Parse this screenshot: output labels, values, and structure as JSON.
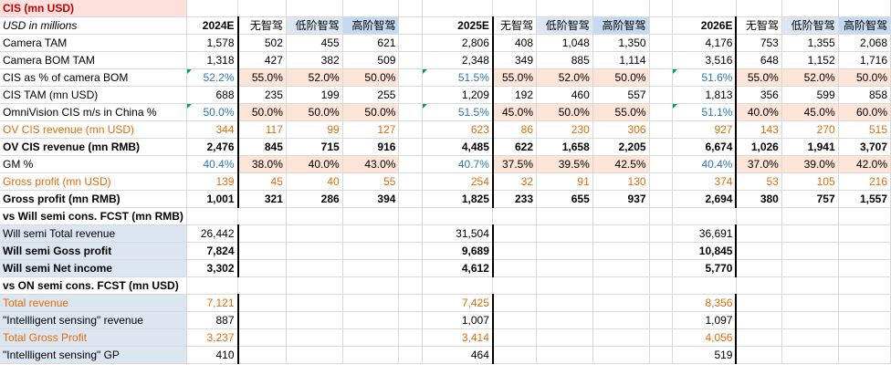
{
  "title": "CIS (mn USD)",
  "units_note": "USD in millions",
  "years": [
    "2024E",
    "2025E",
    "2026E"
  ],
  "sub_headers": [
    "无智驾",
    "低阶智驾",
    "高阶智驾"
  ],
  "rows": [
    {
      "label": "Camera TAM",
      "style": "plain",
      "vals": [
        "1,578",
        "502",
        "455",
        "621",
        "2,806",
        "408",
        "1,048",
        "1,350",
        "4,176",
        "753",
        "1,355",
        "2,068"
      ]
    },
    {
      "label": "Camera BOM TAM",
      "style": "plain",
      "vals": [
        "1,318",
        "427",
        "382",
        "509",
        "2,348",
        "349",
        "885",
        "1,114",
        "3,516",
        "648",
        "1,152",
        "1,716"
      ]
    },
    {
      "label": "CIS as % of camera BOM",
      "style": "pct",
      "vals": [
        "52.2%",
        "55.0%",
        "52.0%",
        "50.0%",
        "51.5%",
        "55.0%",
        "52.0%",
        "50.0%",
        "51.6%",
        "55.0%",
        "52.0%",
        "50.0%"
      ]
    },
    {
      "label": "CIS TAM (mn USD)",
      "style": "plain",
      "vals": [
        "688",
        "235",
        "199",
        "255",
        "1,209",
        "192",
        "460",
        "557",
        "1,813",
        "356",
        "599",
        "858"
      ]
    },
    {
      "label": "OmniVision CIS m/s in China %",
      "style": "pct",
      "vals": [
        "50.0%",
        "50.0%",
        "50.0%",
        "50.0%",
        "51.5%",
        "45.0%",
        "50.0%",
        "55.0%",
        "51.1%",
        "40.0%",
        "45.0%",
        "60.0%"
      ]
    },
    {
      "label": "OV CIS revenue (mn USD)",
      "style": "orange",
      "vals": [
        "344",
        "117",
        "99",
        "127",
        "623",
        "86",
        "230",
        "306",
        "927",
        "143",
        "270",
        "515"
      ]
    },
    {
      "label": "OV CIS revenue (mn RMB)",
      "style": "bold",
      "vals": [
        "2,476",
        "845",
        "715",
        "916",
        "4,485",
        "622",
        "1,658",
        "2,205",
        "6,674",
        "1,026",
        "1,941",
        "3,707"
      ]
    },
    {
      "label": "GM %",
      "style": "pct-ind",
      "vals": [
        "40.4%",
        "38.0%",
        "40.0%",
        "43.0%",
        "40.7%",
        "37.5%",
        "39.5%",
        "42.5%",
        "40.4%",
        "37.0%",
        "39.0%",
        "42.0%"
      ]
    },
    {
      "label": "Gross profit (mn USD)",
      "style": "orange-ind",
      "vals": [
        "139",
        "45",
        "40",
        "55",
        "254",
        "32",
        "91",
        "130",
        "374",
        "53",
        "105",
        "216"
      ]
    },
    {
      "label": "Gross profit (mn RMB)",
      "style": "bold-ind",
      "vals": [
        "1,001",
        "321",
        "286",
        "394",
        "1,825",
        "233",
        "655",
        "937",
        "2,694",
        "380",
        "757",
        "1,557"
      ]
    }
  ],
  "will_section": {
    "header": "vs Will semi cons. FCST (mn RMB)",
    "rows": [
      {
        "label": "Will semi Total revenue",
        "bold": false,
        "vals": [
          "26,442",
          "31,504",
          "36,691"
        ]
      },
      {
        "label": "Will semi Goss profit",
        "bold": true,
        "vals": [
          "7,824",
          "9,689",
          "10,845"
        ]
      },
      {
        "label": "Will semi Net income",
        "bold": true,
        "vals": [
          "3,302",
          "4,612",
          "5,770"
        ]
      }
    ]
  },
  "on_section": {
    "header": "vs ON semi cons. FCST (mn USD)",
    "rows": [
      {
        "label": "Total revenue",
        "orange": true,
        "vals": [
          "7,121",
          "7,425",
          "8,356"
        ]
      },
      {
        "label": "\"Intellligent sensing\" revenue",
        "orange": false,
        "vals": [
          "887",
          "1,007",
          "1,097"
        ]
      },
      {
        "label": "Total Gross Profit",
        "orange": true,
        "vals": [
          "3,237",
          "3,414",
          "4,056"
        ]
      },
      {
        "label": "\"Intellligent sensing\" GP",
        "orange": false,
        "vals": [
          "410",
          "464",
          "519"
        ]
      }
    ]
  }
}
